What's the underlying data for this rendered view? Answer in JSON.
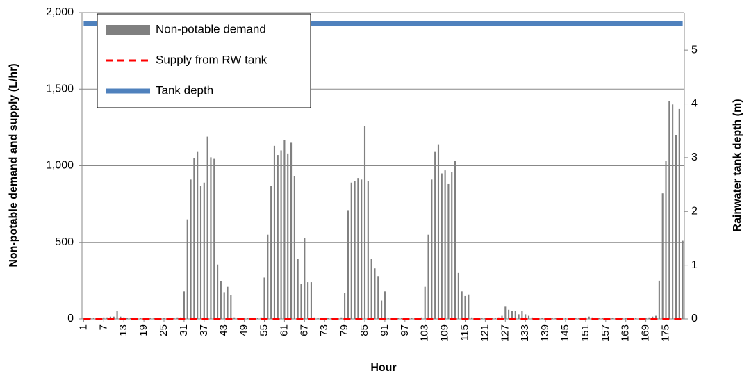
{
  "chart_data": {
    "type": "bar",
    "x_label": "Hour",
    "y_label": "Non-potable demand and supply (L/hr)",
    "y2_label": "Rainwater tank depth (m)",
    "categories": [
      1,
      null,
      null,
      null,
      null,
      null,
      7,
      null,
      null,
      null,
      null,
      null,
      13,
      null,
      null,
      null,
      null,
      null,
      19,
      null,
      null,
      null,
      null,
      null,
      25,
      null,
      null,
      null,
      null,
      null,
      31,
      null,
      null,
      null,
      null,
      null,
      37,
      null,
      null,
      null,
      null,
      null,
      43,
      null,
      null,
      null,
      null,
      null,
      49,
      null,
      null,
      null,
      null,
      null,
      55,
      null,
      null,
      null,
      null,
      null,
      61,
      null,
      null,
      null,
      null,
      null,
      67,
      null,
      null,
      null,
      null,
      null,
      73,
      null,
      null,
      null,
      null,
      null,
      79,
      null,
      null,
      null,
      null,
      null,
      85,
      null,
      null,
      null,
      null,
      null,
      91,
      null,
      null,
      null,
      null,
      null,
      97,
      null,
      null,
      null,
      null,
      null,
      103,
      null,
      null,
      null,
      null,
      null,
      109,
      null,
      null,
      null,
      null,
      null,
      115,
      null,
      null,
      null,
      null,
      null,
      121,
      null,
      null,
      null,
      null,
      null,
      127,
      null,
      null,
      null,
      null,
      null,
      133,
      null,
      null,
      null,
      null,
      null,
      139,
      null,
      null,
      null,
      null,
      null,
      145,
      null,
      null,
      null,
      null,
      null,
      151,
      null,
      null,
      null,
      null,
      null,
      157,
      null,
      null,
      null,
      null,
      null,
      163,
      null,
      null,
      null,
      null,
      null,
      169,
      null,
      null,
      null,
      null,
      null,
      175,
      null,
      null,
      null,
      null,
      null
    ],
    "series": [
      {
        "name": "Non-potable demand",
        "type": "bar",
        "color": "#808080",
        "values": [
          5,
          5,
          5,
          5,
          5,
          5,
          10,
          10,
          15,
          15,
          50,
          15,
          10,
          5,
          5,
          5,
          5,
          5,
          5,
          5,
          5,
          5,
          5,
          5,
          5,
          5,
          5,
          5,
          10,
          10,
          180,
          650,
          910,
          1050,
          1090,
          870,
          890,
          1190,
          1055,
          1045,
          355,
          245,
          175,
          210,
          155,
          10,
          5,
          5,
          5,
          5,
          5,
          5,
          5,
          10,
          270,
          550,
          870,
          1130,
          1070,
          1100,
          1170,
          1080,
          1150,
          930,
          390,
          230,
          530,
          240,
          240,
          10,
          5,
          5,
          5,
          5,
          5,
          5,
          5,
          10,
          170,
          710,
          890,
          900,
          920,
          910,
          1260,
          900,
          390,
          330,
          280,
          120,
          180,
          5,
          5,
          5,
          5,
          5,
          5,
          5,
          5,
          5,
          5,
          10,
          210,
          550,
          910,
          1090,
          1140,
          950,
          970,
          880,
          960,
          1030,
          300,
          180,
          150,
          160,
          10,
          5,
          5,
          5,
          5,
          5,
          5,
          5,
          10,
          20,
          80,
          60,
          50,
          50,
          30,
          50,
          30,
          20,
          10,
          5,
          5,
          5,
          5,
          5,
          5,
          5,
          5,
          5,
          5,
          5,
          5,
          5,
          5,
          5,
          10,
          15,
          10,
          5,
          5,
          5,
          5,
          5,
          5,
          5,
          5,
          5,
          5,
          5,
          5,
          5,
          5,
          5,
          5,
          10,
          15,
          20,
          250,
          820,
          1030,
          1420,
          1400,
          1200,
          1370,
          510
        ]
      },
      {
        "name": "Supply from RW tank",
        "type": "line",
        "style": "dashed",
        "color": "#ff0000",
        "values": [
          0,
          0,
          0,
          0,
          0,
          0,
          0,
          0,
          0,
          0,
          0,
          0,
          0,
          0,
          0,
          0,
          0,
          0,
          0,
          0,
          0,
          0,
          0,
          0,
          0,
          0,
          0,
          0,
          0,
          0,
          0,
          0,
          0,
          0,
          0,
          0,
          0,
          0,
          0,
          0,
          0,
          0,
          0,
          0,
          0,
          0,
          0,
          0,
          0,
          0,
          0,
          0,
          0,
          0,
          0,
          0,
          0,
          0,
          0,
          0,
          0,
          0,
          0,
          0,
          0,
          0,
          0,
          0,
          0,
          0,
          0,
          0,
          0,
          0,
          0,
          0,
          0,
          0,
          0,
          0,
          0,
          0,
          0,
          0,
          0,
          0,
          0,
          0,
          0,
          0,
          0,
          0,
          0,
          0,
          0,
          0,
          0,
          0,
          0,
          0,
          0,
          0,
          0,
          0,
          0,
          0,
          0,
          0,
          0,
          0,
          0,
          0,
          0,
          0,
          0,
          0,
          0,
          0,
          0,
          0,
          0,
          0,
          0,
          0,
          0,
          0,
          0,
          0,
          0,
          0,
          0,
          0,
          0,
          0,
          0,
          0,
          0,
          0,
          0,
          0,
          0,
          0,
          0,
          0,
          0,
          0,
          0,
          0,
          0,
          0,
          0,
          0,
          0,
          0,
          0,
          0,
          0,
          0,
          0,
          0,
          0,
          0,
          0,
          0,
          0,
          0,
          0,
          0,
          0,
          0,
          0,
          0,
          0,
          0,
          0,
          0,
          0,
          0,
          0,
          0
        ]
      },
      {
        "name": "Tank depth",
        "type": "line",
        "style": "solid",
        "color": "#4f81bd",
        "axis": "y2",
        "values": [
          5.5,
          5.5,
          5.5,
          5.5,
          5.5,
          5.5,
          5.5,
          5.5,
          5.5,
          5.5,
          5.5,
          5.5,
          5.5,
          5.5,
          5.5,
          5.5,
          5.5,
          5.5,
          5.5,
          5.5,
          5.5,
          5.5,
          5.5,
          5.5,
          5.5,
          5.5,
          5.5,
          5.5,
          5.5,
          5.5,
          5.5,
          5.5,
          5.5,
          5.5,
          5.5,
          5.5,
          5.5,
          5.5,
          5.5,
          5.5,
          5.5,
          5.5,
          5.5,
          5.5,
          5.5,
          5.5,
          5.5,
          5.5,
          5.5,
          5.5,
          5.5,
          5.5,
          5.5,
          5.5,
          5.5,
          5.5,
          5.5,
          5.5,
          5.5,
          5.5,
          5.5,
          5.5,
          5.5,
          5.5,
          5.5,
          5.5,
          5.5,
          5.5,
          5.5,
          5.5,
          5.5,
          5.5,
          5.5,
          5.5,
          5.5,
          5.5,
          5.5,
          5.5,
          5.5,
          5.5,
          5.5,
          5.5,
          5.5,
          5.5,
          5.5,
          5.5,
          5.5,
          5.5,
          5.5,
          5.5,
          5.5,
          5.5,
          5.5,
          5.5,
          5.5,
          5.5,
          5.5,
          5.5,
          5.5,
          5.5,
          5.5,
          5.5,
          5.5,
          5.5,
          5.5,
          5.5,
          5.5,
          5.5,
          5.5,
          5.5,
          5.5,
          5.5,
          5.5,
          5.5,
          5.5,
          5.5,
          5.5,
          5.5,
          5.5,
          5.5,
          5.5,
          5.5,
          5.5,
          5.5,
          5.5,
          5.5,
          5.5,
          5.5,
          5.5,
          5.5,
          5.5,
          5.5,
          5.5,
          5.5,
          5.5,
          5.5,
          5.5,
          5.5,
          5.5,
          5.5,
          5.5,
          5.5,
          5.5,
          5.5,
          5.5,
          5.5,
          5.5,
          5.5,
          5.5,
          5.5,
          5.5,
          5.5,
          5.5,
          5.5,
          5.5,
          5.5,
          5.5,
          5.5,
          5.5,
          5.5,
          5.5,
          5.5,
          5.5,
          5.5,
          5.5,
          5.5,
          5.5,
          5.5,
          5.5,
          5.5,
          5.5,
          5.5,
          5.5,
          5.5,
          5.5,
          5.5,
          5.5,
          5.5,
          5.5,
          5.5
        ]
      }
    ],
    "ylim": [
      0,
      2000
    ],
    "yticks": [
      0,
      500,
      {
        "value": 1000,
        "label": "1,000"
      },
      {
        "value": 1500,
        "label": "1,500"
      },
      {
        "value": 2000,
        "label": "2,000"
      }
    ],
    "y2lim": [
      0,
      5.7
    ],
    "y2ticks": [
      0,
      1,
      2,
      3,
      4,
      5
    ],
    "grid": true,
    "legend": "upper left"
  }
}
